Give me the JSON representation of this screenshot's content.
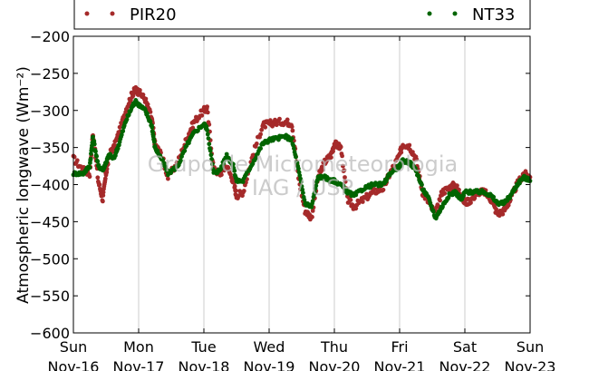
{
  "chart_data": {
    "type": "scatter",
    "ylabel": "Atmospheric longwave (Wm⁻²)",
    "ylim": [
      -600,
      -200
    ],
    "yticks": [
      -200,
      -250,
      -300,
      -350,
      -400,
      -450,
      -500,
      -550,
      -600
    ],
    "ytick_labels": [
      "−200",
      "−250",
      "−300",
      "−350",
      "−400",
      "−450",
      "−500",
      "−550",
      "−600"
    ],
    "xlim": [
      0,
      7
    ],
    "xticks": [
      {
        "day": "Sun",
        "date": "Nov-16"
      },
      {
        "day": "Mon",
        "date": "Nov-17"
      },
      {
        "day": "Tue",
        "date": "Nov-18"
      },
      {
        "day": "Wed",
        "date": "Nov-19"
      },
      {
        "day": "Thu",
        "date": "Nov-20"
      },
      {
        "day": "Fri",
        "date": "Nov-21"
      },
      {
        "day": "Sat",
        "date": "Nov-22"
      },
      {
        "day": "Sun",
        "date": "Nov-23"
      }
    ],
    "grid": "vertical",
    "legend_placement": "top",
    "watermark": [
      "Grupo de Micrometeorologia",
      "IAG / USP"
    ],
    "series": [
      {
        "name": "PIR20",
        "color": "#a52a2a",
        "x": [
          0.0,
          0.15,
          0.25,
          0.3,
          0.38,
          0.45,
          0.5,
          0.55,
          0.62,
          0.7,
          0.8,
          0.9,
          0.95,
          1.0,
          1.1,
          1.2,
          1.25,
          1.35,
          1.45,
          1.6,
          1.75,
          1.85,
          2.0,
          2.05,
          2.15,
          2.25,
          2.35,
          2.45,
          2.5,
          2.6,
          2.75,
          2.9,
          3.0,
          3.1,
          3.25,
          3.35,
          3.45,
          3.55,
          3.65,
          3.75,
          3.85,
          3.95,
          4.0,
          4.1,
          4.2,
          4.3,
          4.45,
          4.6,
          4.75,
          4.85,
          5.0,
          5.05,
          5.15,
          5.25,
          5.35,
          5.45,
          5.55,
          5.65,
          5.75,
          5.85,
          5.95,
          6.0,
          6.1,
          6.2,
          6.3,
          6.4,
          6.5,
          6.6,
          6.7,
          6.8,
          6.9,
          7.0
        ],
        "y": [
          -365,
          -380,
          -385,
          -330,
          -395,
          -420,
          -385,
          -360,
          -350,
          -330,
          -300,
          -278,
          -272,
          -275,
          -285,
          -310,
          -345,
          -360,
          -390,
          -370,
          -335,
          -315,
          -300,
          -298,
          -380,
          -385,
          -375,
          -395,
          -415,
          -410,
          -360,
          -320,
          -318,
          -316,
          -315,
          -318,
          -390,
          -435,
          -445,
          -390,
          -370,
          -360,
          -345,
          -350,
          -420,
          -430,
          -420,
          -410,
          -405,
          -385,
          -360,
          -345,
          -348,
          -365,
          -410,
          -425,
          -440,
          -410,
          -405,
          -400,
          -415,
          -425,
          -420,
          -410,
          -410,
          -420,
          -440,
          -435,
          -420,
          -400,
          -385,
          -390
        ]
      },
      {
        "name": "NT33",
        "color": "#006400",
        "x": [
          0.0,
          0.15,
          0.25,
          0.3,
          0.38,
          0.45,
          0.5,
          0.55,
          0.62,
          0.7,
          0.8,
          0.9,
          0.95,
          1.0,
          1.1,
          1.2,
          1.25,
          1.35,
          1.45,
          1.6,
          1.75,
          1.85,
          2.0,
          2.05,
          2.15,
          2.25,
          2.35,
          2.45,
          2.5,
          2.6,
          2.75,
          2.9,
          3.0,
          3.1,
          3.25,
          3.35,
          3.45,
          3.55,
          3.65,
          3.75,
          3.85,
          3.95,
          4.0,
          4.1,
          4.2,
          4.3,
          4.45,
          4.6,
          4.75,
          4.85,
          5.0,
          5.05,
          5.15,
          5.25,
          5.35,
          5.45,
          5.55,
          5.65,
          5.75,
          5.85,
          5.95,
          6.0,
          6.1,
          6.2,
          6.3,
          6.4,
          6.5,
          6.6,
          6.7,
          6.8,
          6.9,
          7.0
        ],
        "y": [
          -385,
          -385,
          -375,
          -335,
          -375,
          -380,
          -370,
          -360,
          -365,
          -345,
          -315,
          -295,
          -288,
          -292,
          -300,
          -320,
          -350,
          -365,
          -385,
          -375,
          -345,
          -330,
          -318,
          -325,
          -385,
          -380,
          -360,
          -375,
          -395,
          -395,
          -370,
          -345,
          -340,
          -338,
          -335,
          -340,
          -380,
          -425,
          -430,
          -390,
          -390,
          -395,
          -395,
          -400,
          -410,
          -415,
          -405,
          -400,
          -400,
          -385,
          -375,
          -368,
          -370,
          -380,
          -405,
          -420,
          -445,
          -430,
          -415,
          -410,
          -420,
          -410,
          -410,
          -410,
          -410,
          -415,
          -425,
          -425,
          -415,
          -400,
          -390,
          -395
        ]
      }
    ]
  }
}
